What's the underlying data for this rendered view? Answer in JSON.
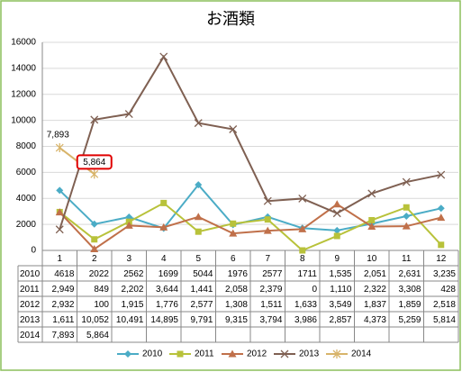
{
  "chart_data": {
    "type": "line",
    "title": "お酒類",
    "categories": [
      "1",
      "2",
      "3",
      "4",
      "5",
      "6",
      "7",
      "8",
      "9",
      "10",
      "11",
      "12"
    ],
    "ylim": [
      0,
      16000
    ],
    "yticks": [
      0,
      2000,
      4000,
      6000,
      8000,
      10000,
      12000,
      14000,
      16000
    ],
    "grid": true,
    "legend": "bottom",
    "series": [
      {
        "name": "2010",
        "color": "#4bacc6",
        "marker": "diamond",
        "values": [
          4618,
          2022,
          2562,
          1699,
          5044,
          1976,
          2577,
          1711,
          1535,
          2051,
          2631,
          3235
        ],
        "value_labels": [
          null,
          null,
          null,
          null,
          null,
          null,
          null,
          null,
          "1,535",
          "2,051",
          "2,631",
          "3,235"
        ]
      },
      {
        "name": "2011",
        "color": "#b8c23a",
        "marker": "square",
        "values": [
          2949,
          849,
          2202,
          3644,
          1441,
          2058,
          2379,
          0,
          1110,
          2322,
          3308,
          428
        ],
        "value_labels": [
          "2,949",
          null,
          "2,202",
          "3,644",
          "1,441",
          "2,058",
          "2,379",
          null,
          "1,110",
          "2,322",
          "3,308",
          null
        ]
      },
      {
        "name": "2012",
        "color": "#c0704a",
        "marker": "triangle",
        "values": [
          2932,
          100,
          1915,
          1776,
          2577,
          1308,
          1511,
          1633,
          3549,
          1837,
          1859,
          2518
        ],
        "value_labels": [
          "2,932",
          null,
          "1,915",
          "1,776",
          "2,577",
          "1,308",
          "1,511",
          "1,633",
          "3,549",
          "1,837",
          "1,859",
          "2,518"
        ]
      },
      {
        "name": "2013",
        "color": "#7f6052",
        "marker": "x",
        "values": [
          1611,
          10052,
          10491,
          14895,
          9791,
          9315,
          3794,
          3986,
          2857,
          4373,
          5259,
          5814
        ],
        "value_labels": [
          "1,611",
          "10,052",
          "10,491",
          "14,895",
          "9,791",
          "9,315",
          "3,794",
          "3,986",
          "2,857",
          "4,373",
          "5,259",
          "5,814"
        ]
      },
      {
        "name": "2014",
        "color": "#d8b46a",
        "marker": "star",
        "values": [
          7893,
          5864,
          null,
          null,
          null,
          null,
          null,
          null,
          null,
          null,
          null,
          null
        ],
        "value_labels": [
          "7,893",
          "5,864",
          null,
          null,
          null,
          null,
          null,
          null,
          null,
          null,
          null,
          null
        ]
      }
    ]
  }
}
